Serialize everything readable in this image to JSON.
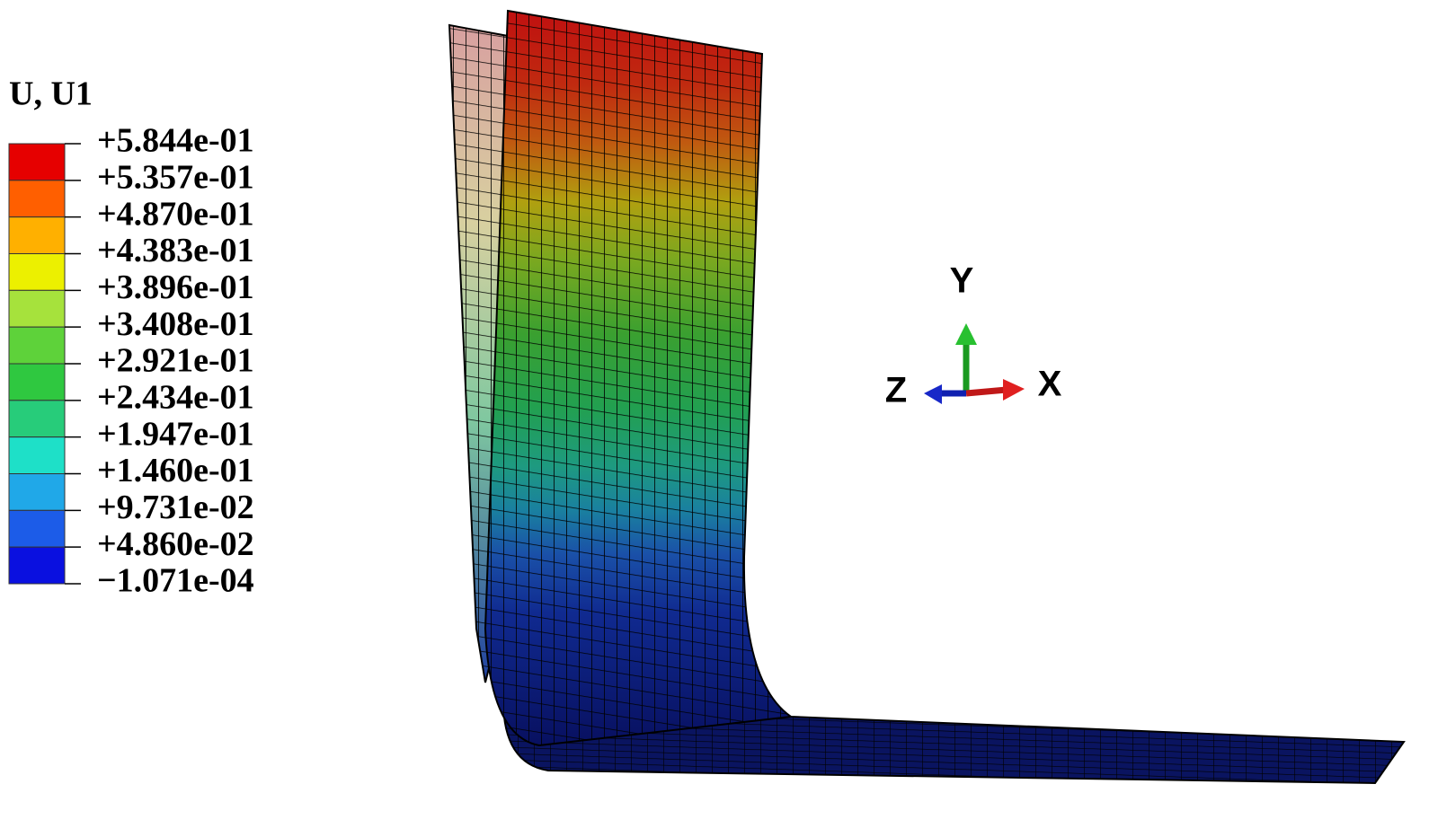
{
  "legend": {
    "title": "U, U1",
    "labels": [
      "+5.844e-01",
      "+5.357e-01",
      "+4.870e-01",
      "+4.383e-01",
      "+3.896e-01",
      "+3.408e-01",
      "+2.921e-01",
      "+2.434e-01",
      "+1.947e-01",
      "+1.460e-01",
      "+9.731e-02",
      "+4.860e-02",
      "−1.071e-04"
    ]
  },
  "triad": {
    "y": "Y",
    "x": "X",
    "z": "Z"
  }
}
